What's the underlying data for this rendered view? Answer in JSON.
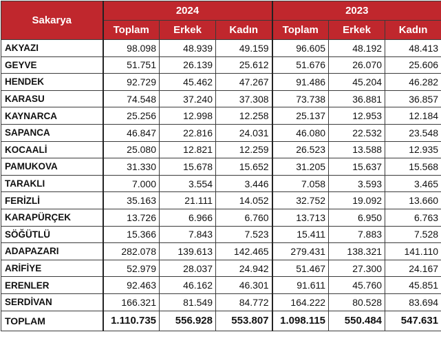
{
  "header": {
    "region_label": "Sakarya",
    "years": [
      "2024",
      "2023"
    ],
    "columns": [
      "Toplam",
      "Erkek",
      "Kadın"
    ]
  },
  "rows": [
    {
      "name": "AKYAZI",
      "values": [
        "98.098",
        "48.939",
        "49.159",
        "96.605",
        "48.192",
        "48.413"
      ]
    },
    {
      "name": "GEYVE",
      "values": [
        "51.751",
        "26.139",
        "25.612",
        "51.676",
        "26.070",
        "25.606"
      ]
    },
    {
      "name": "HENDEK",
      "values": [
        "92.729",
        "45.462",
        "47.267",
        "91.486",
        "45.204",
        "46.282"
      ]
    },
    {
      "name": "KARASU",
      "values": [
        "74.548",
        "37.240",
        "37.308",
        "73.738",
        "36.881",
        "36.857"
      ]
    },
    {
      "name": "KAYNARCA",
      "values": [
        "25.256",
        "12.998",
        "12.258",
        "25.137",
        "12.953",
        "12.184"
      ]
    },
    {
      "name": "SAPANCA",
      "values": [
        "46.847",
        "22.816",
        "24.031",
        "46.080",
        "22.532",
        "23.548"
      ]
    },
    {
      "name": "KOCAALİ",
      "values": [
        "25.080",
        "12.821",
        "12.259",
        "26.523",
        "13.588",
        "12.935"
      ]
    },
    {
      "name": "PAMUKOVA",
      "values": [
        "31.330",
        "15.678",
        "15.652",
        "31.205",
        "15.637",
        "15.568"
      ]
    },
    {
      "name": "TARAKLI",
      "values": [
        "7.000",
        "3.554",
        "3.446",
        "7.058",
        "3.593",
        "3.465"
      ]
    },
    {
      "name": "FERİZLİ",
      "values": [
        "35.163",
        "21.111",
        "14.052",
        "32.752",
        "19.092",
        "13.660"
      ]
    },
    {
      "name": "KARAPÜRÇEK",
      "values": [
        "13.726",
        "6.966",
        "6.760",
        "13.713",
        "6.950",
        "6.763"
      ]
    },
    {
      "name": "SÖĞÜTLÜ",
      "values": [
        "15.366",
        "7.843",
        "7.523",
        "15.411",
        "7.883",
        "7.528"
      ]
    },
    {
      "name": "ADAPAZARI",
      "values": [
        "282.078",
        "139.613",
        "142.465",
        "279.431",
        "138.321",
        "141.110"
      ]
    },
    {
      "name": "ARİFİYE",
      "values": [
        "52.979",
        "28.037",
        "24.942",
        "51.467",
        "27.300",
        "24.167"
      ]
    },
    {
      "name": "ERENLER",
      "values": [
        "92.463",
        "46.162",
        "46.301",
        "91.611",
        "45.760",
        "45.851"
      ]
    },
    {
      "name": "SERDİVAN",
      "values": [
        "166.321",
        "81.549",
        "84.772",
        "164.222",
        "80.528",
        "83.694"
      ]
    }
  ],
  "total": {
    "name": "TOPLAM",
    "values": [
      "1.110.735",
      "556.928",
      "553.807",
      "1.098.115",
      "550.484",
      "547.631"
    ]
  },
  "colors": {
    "header_bg": "#c0272d",
    "header_text": "#ffffff",
    "border": "#3a3a3a"
  }
}
